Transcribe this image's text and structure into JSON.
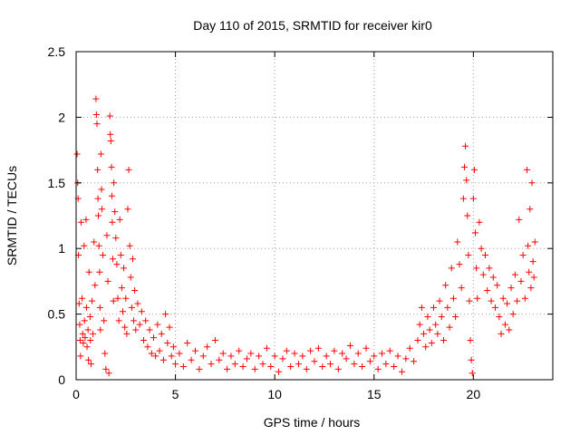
{
  "chart_data": {
    "type": "scatter",
    "title": "Day 110 of 2015, SRMTID for receiver kir0",
    "xlabel": "GPS time / hours",
    "ylabel": "SRMTID / TECUs",
    "xlim": [
      0,
      24
    ],
    "ylim": [
      0,
      2.5
    ],
    "xticks": [
      0,
      5,
      10,
      15,
      20
    ],
    "yticks": [
      0,
      0.5,
      1,
      1.5,
      2,
      2.5
    ],
    "xtick_labels": [
      "0",
      "5",
      "10",
      "15",
      "20"
    ],
    "ytick_labels": [
      "0",
      "0.5",
      "1",
      "1.5",
      "2",
      "2.5"
    ],
    "grid": true,
    "marker": "+",
    "series": [
      {
        "name": "kir0",
        "color": "#ff0000",
        "points": [
          [
            0.05,
            1.72
          ],
          [
            0.08,
            1.5
          ],
          [
            0.1,
            1.38
          ],
          [
            0.12,
            0.95
          ],
          [
            0.15,
            0.58
          ],
          [
            0.18,
            0.42
          ],
          [
            0.2,
            0.3
          ],
          [
            0.22,
            0.18
          ],
          [
            0.25,
            1.2
          ],
          [
            0.3,
            0.62
          ],
          [
            0.33,
            0.35
          ],
          [
            0.36,
            0.28
          ],
          [
            0.4,
            1.02
          ],
          [
            0.42,
            0.45
          ],
          [
            0.45,
            0.32
          ],
          [
            0.5,
            1.22
          ],
          [
            0.52,
            0.55
          ],
          [
            0.55,
            0.25
          ],
          [
            0.6,
            0.38
          ],
          [
            0.62,
            0.15
          ],
          [
            0.65,
            0.82
          ],
          [
            0.7,
            0.48
          ],
          [
            0.72,
            0.3
          ],
          [
            0.75,
            0.12
          ],
          [
            0.8,
            0.6
          ],
          [
            0.85,
            0.35
          ],
          [
            0.9,
            1.05
          ],
          [
            0.95,
            0.72
          ],
          [
            1.0,
            2.14
          ],
          [
            1.02,
            2.02
          ],
          [
            1.05,
            1.95
          ],
          [
            1.08,
            1.6
          ],
          [
            1.1,
            1.38
          ],
          [
            1.12,
            1.25
          ],
          [
            1.15,
            1.02
          ],
          [
            1.18,
            0.82
          ],
          [
            1.2,
            0.55
          ],
          [
            1.22,
            0.38
          ],
          [
            1.25,
            1.72
          ],
          [
            1.28,
            1.45
          ],
          [
            1.3,
            1.3
          ],
          [
            1.35,
            0.95
          ],
          [
            1.4,
            0.45
          ],
          [
            1.45,
            0.2
          ],
          [
            1.5,
            0.08
          ],
          [
            1.55,
            1.1
          ],
          [
            1.6,
            0.75
          ],
          [
            1.65,
            0.05
          ],
          [
            1.7,
            2.01
          ],
          [
            1.72,
            1.87
          ],
          [
            1.75,
            1.82
          ],
          [
            1.78,
            1.62
          ],
          [
            1.8,
            1.4
          ],
          [
            1.82,
            1.2
          ],
          [
            1.85,
            0.92
          ],
          [
            1.88,
            0.6
          ],
          [
            1.9,
            1.5
          ],
          [
            1.95,
            1.28
          ],
          [
            2.0,
            1.08
          ],
          [
            2.05,
            0.88
          ],
          [
            2.1,
            0.62
          ],
          [
            2.15,
            0.45
          ],
          [
            2.2,
            1.22
          ],
          [
            2.25,
            0.95
          ],
          [
            2.3,
            0.7
          ],
          [
            2.35,
            0.52
          ],
          [
            2.4,
            0.85
          ],
          [
            2.45,
            0.4
          ],
          [
            2.5,
            0.62
          ],
          [
            2.55,
            0.35
          ],
          [
            2.6,
            1.3
          ],
          [
            2.65,
            1.6
          ],
          [
            2.7,
            1.02
          ],
          [
            2.75,
            0.78
          ],
          [
            2.8,
            0.55
          ],
          [
            2.85,
            0.92
          ],
          [
            2.9,
            0.45
          ],
          [
            2.95,
            0.68
          ],
          [
            3.0,
            0.38
          ],
          [
            3.1,
            0.58
          ],
          [
            3.2,
            0.42
          ],
          [
            3.3,
            0.52
          ],
          [
            3.4,
            0.3
          ],
          [
            3.5,
            0.45
          ],
          [
            3.6,
            0.25
          ],
          [
            3.7,
            0.38
          ],
          [
            3.8,
            0.2
          ],
          [
            3.9,
            0.32
          ],
          [
            4.0,
            0.18
          ],
          [
            4.1,
            0.42
          ],
          [
            4.2,
            0.22
          ],
          [
            4.3,
            0.35
          ],
          [
            4.4,
            0.15
          ],
          [
            4.5,
            0.5
          ],
          [
            4.6,
            0.28
          ],
          [
            4.7,
            0.4
          ],
          [
            4.8,
            0.18
          ],
          [
            4.9,
            0.25
          ],
          [
            5.0,
            0.12
          ],
          [
            5.2,
            0.2
          ],
          [
            5.4,
            0.1
          ],
          [
            5.6,
            0.28
          ],
          [
            5.8,
            0.15
          ],
          [
            6.0,
            0.22
          ],
          [
            6.2,
            0.08
          ],
          [
            6.4,
            0.18
          ],
          [
            6.6,
            0.25
          ],
          [
            6.8,
            0.12
          ],
          [
            7.0,
            0.3
          ],
          [
            7.2,
            0.15
          ],
          [
            7.4,
            0.2
          ],
          [
            7.6,
            0.08
          ],
          [
            7.8,
            0.18
          ],
          [
            8.0,
            0.12
          ],
          [
            8.2,
            0.22
          ],
          [
            8.4,
            0.1
          ],
          [
            8.6,
            0.16
          ],
          [
            8.8,
            0.2
          ],
          [
            9.0,
            0.08
          ],
          [
            9.2,
            0.18
          ],
          [
            9.4,
            0.12
          ],
          [
            9.6,
            0.24
          ],
          [
            9.8,
            0.1
          ],
          [
            10.0,
            0.18
          ],
          [
            10.2,
            0.06
          ],
          [
            10.4,
            0.16
          ],
          [
            10.6,
            0.22
          ],
          [
            10.8,
            0.1
          ],
          [
            11.0,
            0.2
          ],
          [
            11.2,
            0.12
          ],
          [
            11.4,
            0.18
          ],
          [
            11.6,
            0.08
          ],
          [
            11.8,
            0.22
          ],
          [
            12.0,
            0.14
          ],
          [
            12.2,
            0.24
          ],
          [
            12.4,
            0.1
          ],
          [
            12.6,
            0.18
          ],
          [
            12.8,
            0.12
          ],
          [
            13.0,
            0.22
          ],
          [
            13.2,
            0.08
          ],
          [
            13.4,
            0.2
          ],
          [
            13.6,
            0.16
          ],
          [
            13.8,
            0.26
          ],
          [
            14.0,
            0.12
          ],
          [
            14.2,
            0.2
          ],
          [
            14.4,
            0.1
          ],
          [
            14.6,
            0.24
          ],
          [
            14.8,
            0.14
          ],
          [
            15.0,
            0.18
          ],
          [
            15.2,
            0.08
          ],
          [
            15.4,
            0.2
          ],
          [
            15.6,
            0.12
          ],
          [
            15.8,
            0.22
          ],
          [
            16.0,
            0.1
          ],
          [
            16.2,
            0.18
          ],
          [
            16.4,
            0.06
          ],
          [
            16.6,
            0.16
          ],
          [
            16.8,
            0.24
          ],
          [
            17.0,
            0.14
          ],
          [
            17.2,
            0.3
          ],
          [
            17.3,
            0.42
          ],
          [
            17.4,
            0.55
          ],
          [
            17.5,
            0.35
          ],
          [
            17.6,
            0.25
          ],
          [
            17.7,
            0.48
          ],
          [
            17.8,
            0.38
          ],
          [
            17.9,
            0.28
          ],
          [
            18.0,
            0.55
          ],
          [
            18.1,
            0.42
          ],
          [
            18.2,
            0.35
          ],
          [
            18.3,
            0.6
          ],
          [
            18.4,
            0.48
          ],
          [
            18.5,
            0.3
          ],
          [
            18.6,
            0.72
          ],
          [
            18.7,
            0.55
          ],
          [
            18.8,
            0.4
          ],
          [
            18.9,
            0.85
          ],
          [
            19.0,
            0.62
          ],
          [
            19.1,
            0.48
          ],
          [
            19.2,
            1.05
          ],
          [
            19.3,
            0.88
          ],
          [
            19.4,
            0.7
          ],
          [
            19.5,
            1.38
          ],
          [
            19.55,
            1.62
          ],
          [
            19.6,
            1.78
          ],
          [
            19.65,
            1.52
          ],
          [
            19.7,
            1.25
          ],
          [
            19.75,
            0.95
          ],
          [
            19.8,
            0.6
          ],
          [
            19.85,
            0.3
          ],
          [
            19.9,
            0.15
          ],
          [
            19.95,
            0.05
          ],
          [
            20.0,
            1.38
          ],
          [
            20.05,
            1.6
          ],
          [
            20.1,
            1.12
          ],
          [
            20.15,
            0.85
          ],
          [
            20.2,
            0.62
          ],
          [
            20.3,
            1.2
          ],
          [
            20.4,
            1.0
          ],
          [
            20.5,
            0.8
          ],
          [
            20.6,
            0.95
          ],
          [
            20.7,
            0.68
          ],
          [
            20.8,
            0.85
          ],
          [
            20.9,
            0.6
          ],
          [
            21.0,
            0.78
          ],
          [
            21.1,
            0.55
          ],
          [
            21.2,
            0.72
          ],
          [
            21.3,
            0.48
          ],
          [
            21.4,
            0.35
          ],
          [
            21.5,
            0.62
          ],
          [
            21.6,
            0.42
          ],
          [
            21.7,
            0.58
          ],
          [
            21.8,
            0.38
          ],
          [
            21.9,
            0.7
          ],
          [
            22.0,
            0.5
          ],
          [
            22.1,
            0.8
          ],
          [
            22.2,
            0.6
          ],
          [
            22.3,
            1.22
          ],
          [
            22.4,
            0.75
          ],
          [
            22.5,
            0.95
          ],
          [
            22.6,
            0.62
          ],
          [
            22.7,
            1.6
          ],
          [
            22.75,
            1.02
          ],
          [
            22.8,
            0.82
          ],
          [
            22.85,
            1.3
          ],
          [
            22.9,
            0.7
          ],
          [
            22.95,
            1.5
          ],
          [
            23.0,
            0.9
          ],
          [
            23.05,
            0.78
          ],
          [
            23.1,
            1.05
          ]
        ]
      }
    ]
  }
}
